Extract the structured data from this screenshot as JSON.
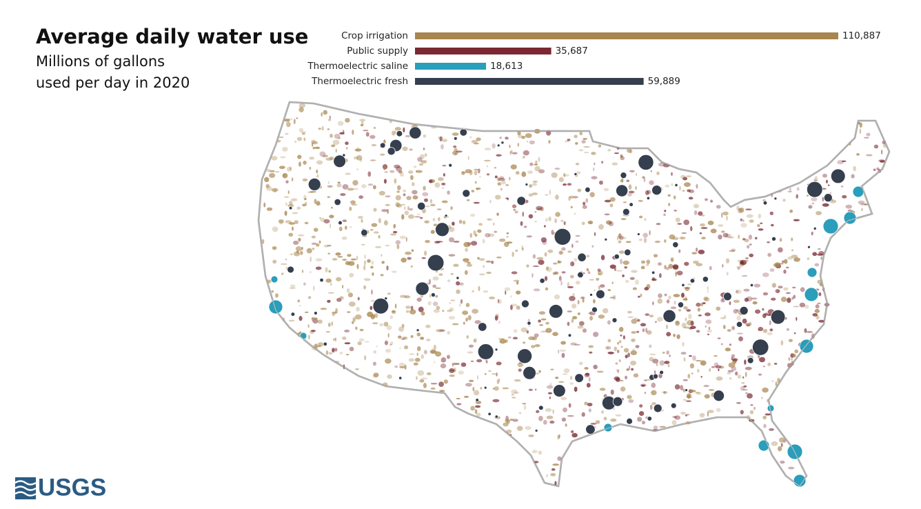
{
  "chart_data": {
    "type": "hbar",
    "title": "Average daily water use",
    "subtitle": [
      "Millions of gallons",
      "used per day in 2020"
    ],
    "categories": [
      "Crop irrigation",
      "Public supply",
      "Thermoelectric saline",
      "Thermoelectric fresh"
    ],
    "values": [
      110887,
      35687,
      18613,
      59889
    ],
    "value_labels": [
      "110,887",
      "35,687",
      "18,613",
      "59,889"
    ],
    "colors": [
      "#a8864f",
      "#7a2832",
      "#2a9ebb",
      "#353f4e"
    ]
  },
  "logo": "USGS"
}
